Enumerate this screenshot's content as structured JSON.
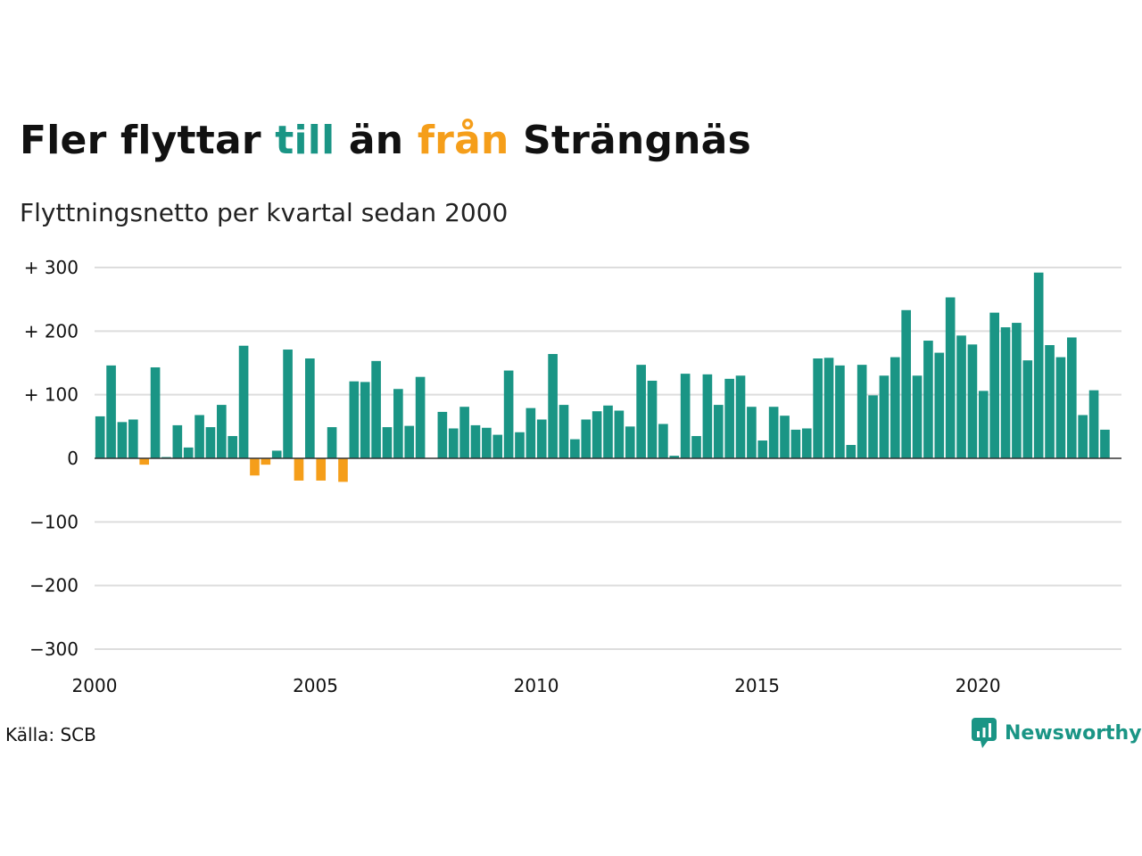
{
  "header": {
    "title_parts": [
      "Fler flyttar ",
      "till",
      " än ",
      "från",
      " Strängnäs"
    ],
    "subtitle": "Flyttningsnetto per kvartal sedan 2000"
  },
  "footer": {
    "source": "Källa: SCB",
    "brand": "Newsworthy",
    "brand_icon": "newsworthy-chart-bubble-icon"
  },
  "colors": {
    "positive": "#1a9585",
    "negative": "#f59e1a",
    "gridline": "#dddddd",
    "zero_line": "#333333",
    "text": "#111111"
  },
  "chart_data": {
    "type": "bar",
    "title": "Fler flyttar till än från Strängnäs",
    "subtitle": "Flyttningsnetto per kvartal sedan 2000",
    "x_start": 2000.0,
    "x_step": 0.25,
    "xlim": [
      2000,
      2023.25
    ],
    "ylim": [
      -300,
      300
    ],
    "y_ticks": [
      300,
      200,
      100,
      0,
      -100,
      -200,
      -300
    ],
    "y_tick_labels": [
      "+ 300",
      "+ 200",
      "+ 100",
      "0",
      "−100",
      "−200",
      "−300"
    ],
    "x_ticks": [
      2000,
      2005,
      2010,
      2015,
      2020
    ],
    "x_tick_labels": [
      "2000",
      "2005",
      "2010",
      "2015",
      "2020"
    ],
    "grid": true,
    "values": [
      66,
      146,
      57,
      61,
      -10,
      143,
      2,
      52,
      17,
      68,
      49,
      84,
      35,
      177,
      -27,
      -10,
      12,
      171,
      -35,
      157,
      -35,
      49,
      -37,
      121,
      120,
      153,
      49,
      109,
      51,
      128,
      0,
      73,
      47,
      81,
      52,
      48,
      37,
      138,
      41,
      79,
      61,
      164,
      84,
      30,
      61,
      74,
      83,
      75,
      50,
      147,
      122,
      54,
      4,
      133,
      35,
      132,
      84,
      125,
      130,
      81,
      28,
      81,
      67,
      45,
      47,
      157,
      158,
      146,
      21,
      147,
      99,
      130,
      159,
      233,
      130,
      185,
      166,
      253,
      193,
      179,
      106,
      229,
      206,
      213,
      154,
      292,
      178,
      159,
      190,
      68,
      107,
      45
    ]
  }
}
